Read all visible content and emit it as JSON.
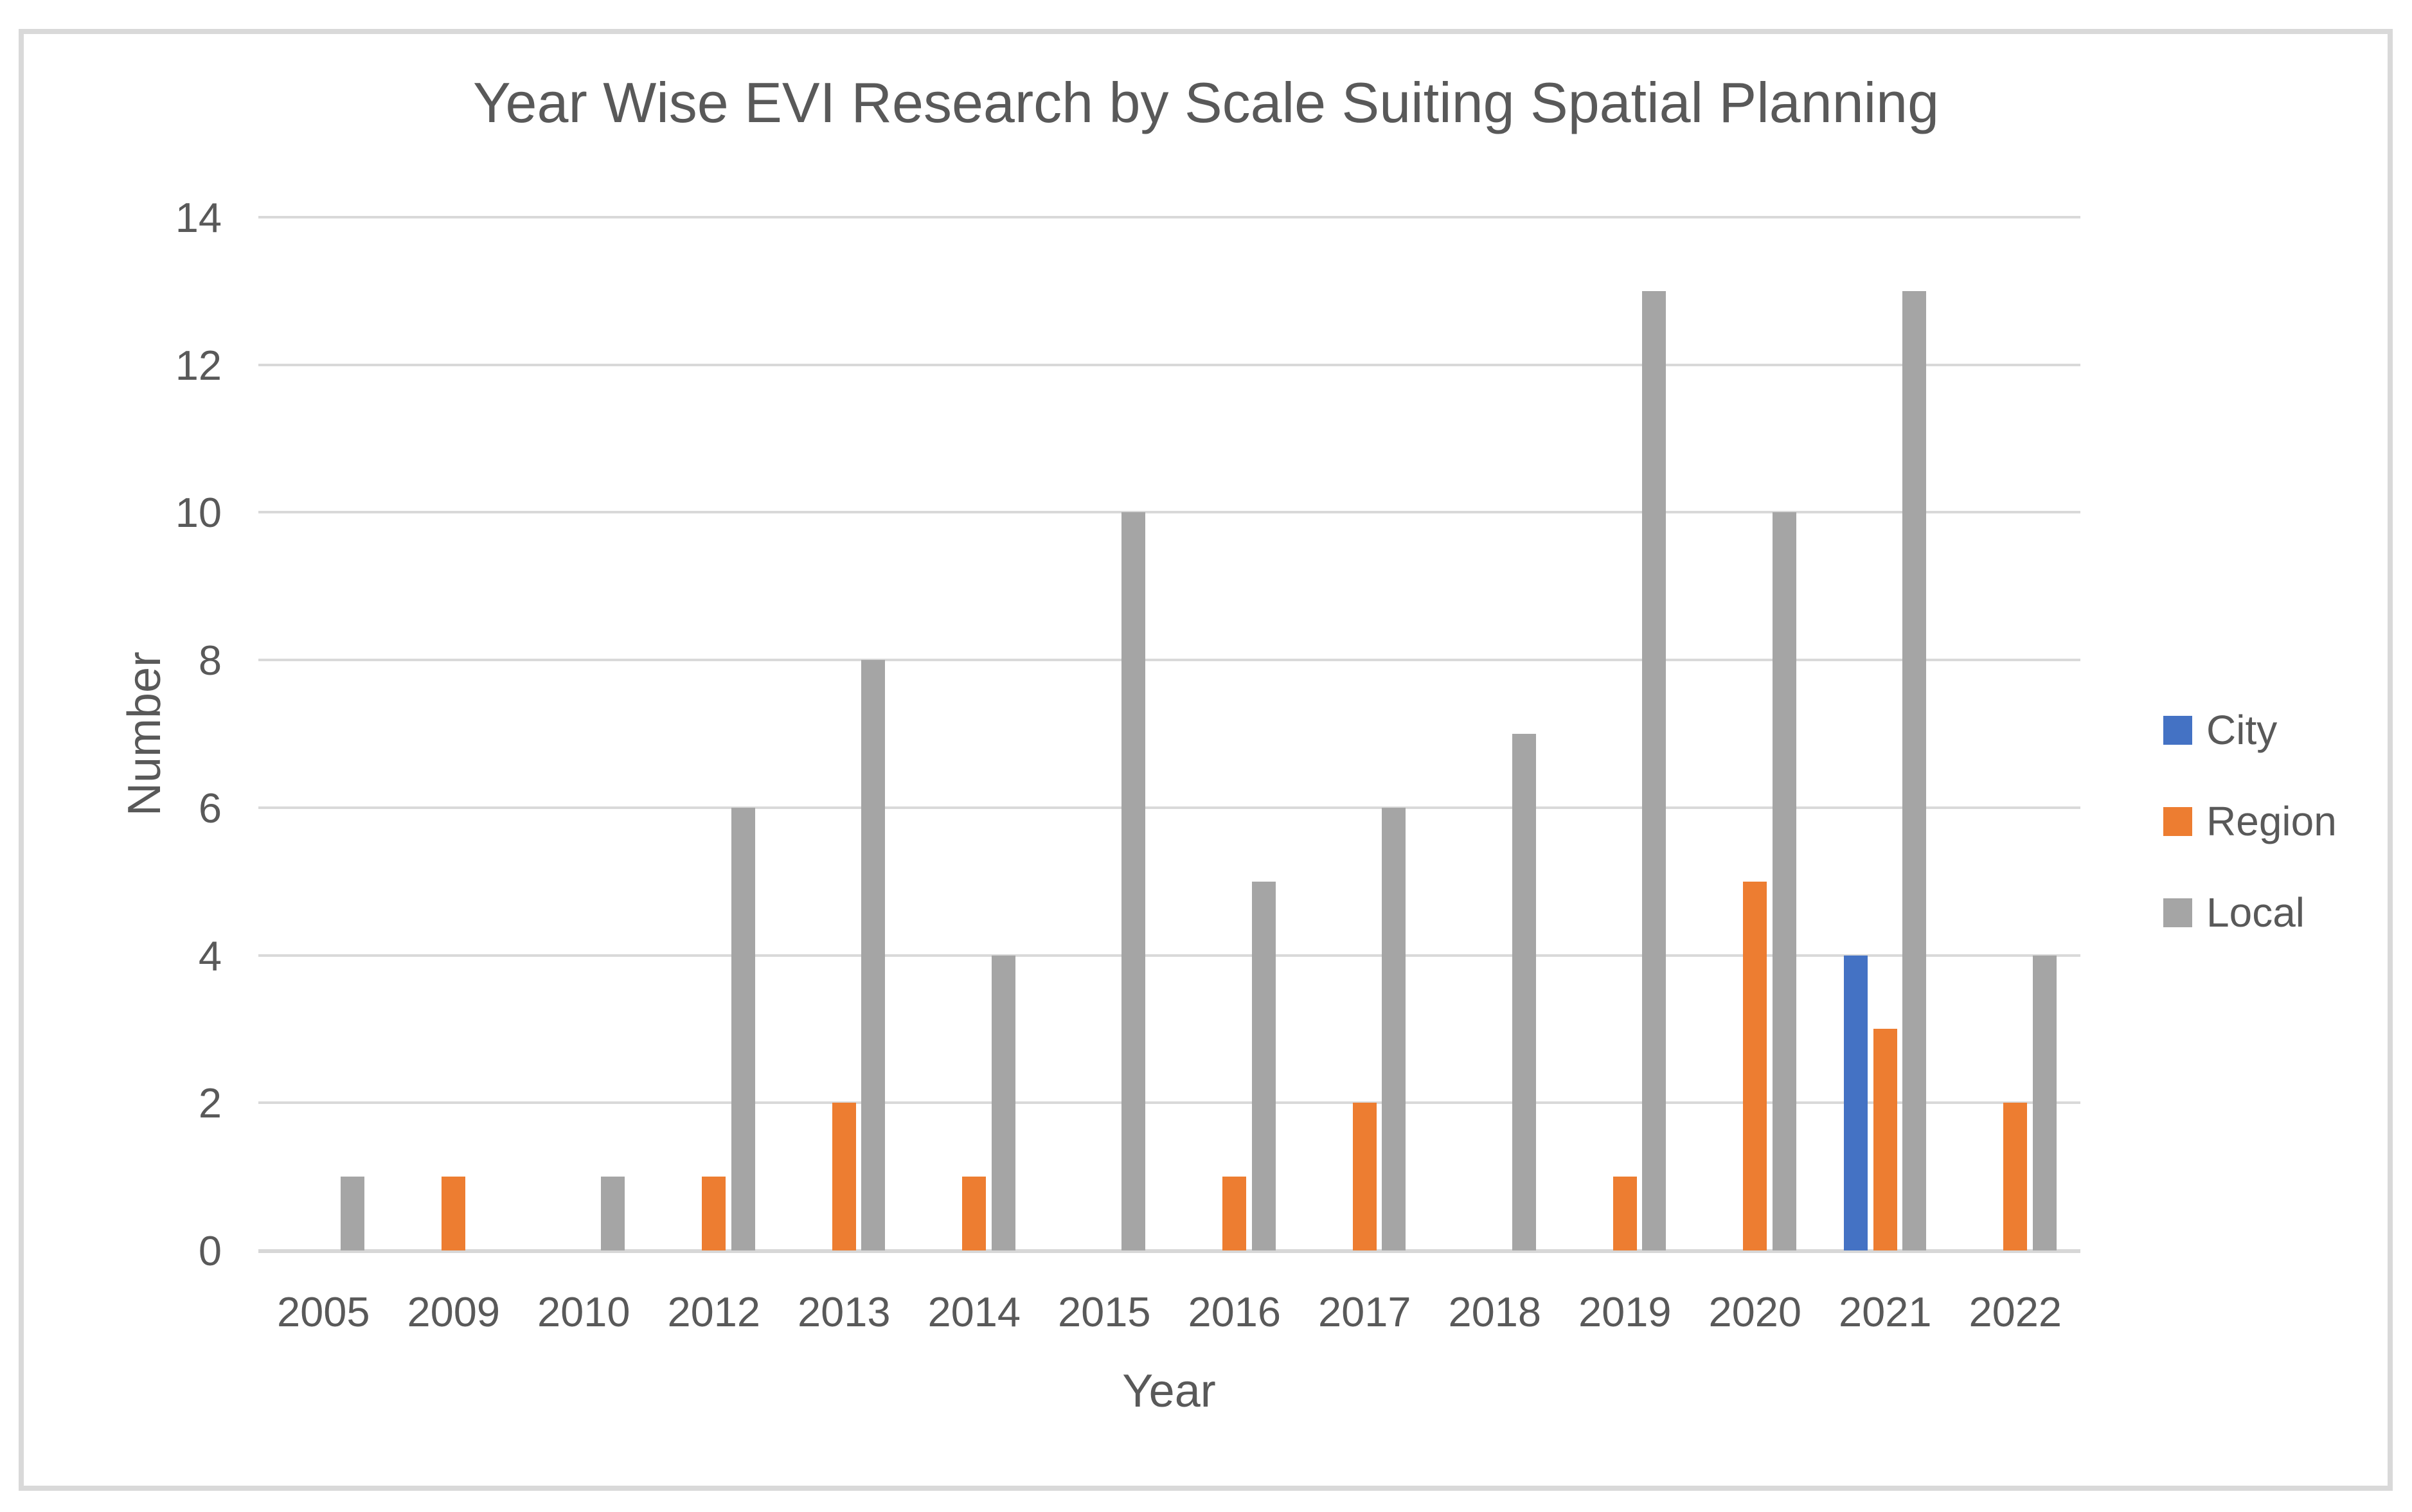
{
  "chart_data": {
    "type": "bar",
    "title": "Year Wise EVI Research by Scale Suiting Spatial Planning",
    "xlabel": "Year",
    "ylabel": "Number",
    "categories": [
      "2005",
      "2009",
      "2010",
      "2012",
      "2013",
      "2014",
      "2015",
      "2016",
      "2017",
      "2018",
      "2019",
      "2020",
      "2021",
      "2022"
    ],
    "series": [
      {
        "name": "City",
        "color": "#4472C4",
        "values": [
          0,
          0,
          0,
          0,
          0,
          0,
          0,
          0,
          0,
          0,
          0,
          0,
          4,
          0
        ]
      },
      {
        "name": "Region",
        "color": "#ED7D31",
        "values": [
          0,
          1,
          0,
          1,
          2,
          1,
          0,
          1,
          2,
          0,
          1,
          5,
          3,
          2
        ]
      },
      {
        "name": "Local",
        "color": "#A5A5A5",
        "values": [
          1,
          0,
          1,
          6,
          8,
          4,
          10,
          5,
          6,
          7,
          13,
          10,
          13,
          4
        ]
      }
    ],
    "ylim": [
      0,
      14
    ],
    "yticks": [
      0,
      2,
      4,
      6,
      8,
      10,
      12,
      14
    ],
    "grid": true,
    "legend_position": "right",
    "legend": [
      "City",
      "Region",
      "Local"
    ],
    "colors": {
      "gridline": "#D9D9D9",
      "axis_line": "#D7D7D7",
      "frame_border": "#D9D9D9",
      "text": "#595959"
    }
  }
}
